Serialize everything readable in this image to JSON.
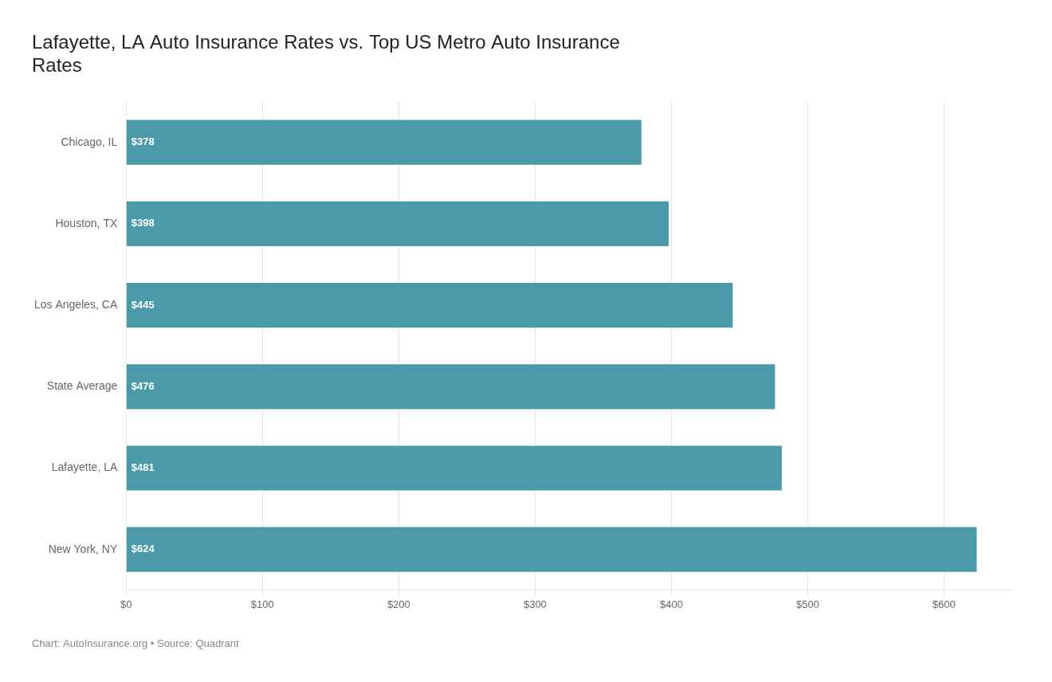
{
  "chart_data": {
    "type": "bar",
    "orientation": "horizontal",
    "title": "Lafayette, LA Auto Insurance Rates vs. Top US Metro Auto Insurance\nRates",
    "annotations": [
      "Chart: AutoInsurance.org • Source: Quadrant"
    ],
    "categories": [
      "New York, NY",
      "Lafayette, LA",
      "State Average",
      "Los Angeles, CA",
      "Houston, TX",
      "Chicago, IL"
    ],
    "values": [
      624,
      481,
      476,
      445,
      398,
      378
    ],
    "value_labels": [
      "$624",
      "$481",
      "$476",
      "$445",
      "$398",
      "$378"
    ],
    "data_labels": true,
    "color": "#4a9aaa",
    "xlim": [
      0,
      650
    ],
    "xticks": [
      {
        "value": 0,
        "label": "$0"
      },
      {
        "value": 100,
        "label": "$100"
      },
      {
        "value": 200,
        "label": "$200"
      },
      {
        "value": 300,
        "label": "$300"
      },
      {
        "value": 400,
        "label": "$400"
      },
      {
        "value": 500,
        "label": "$500"
      },
      {
        "value": 600,
        "label": "$600"
      }
    ],
    "grid": true
  }
}
